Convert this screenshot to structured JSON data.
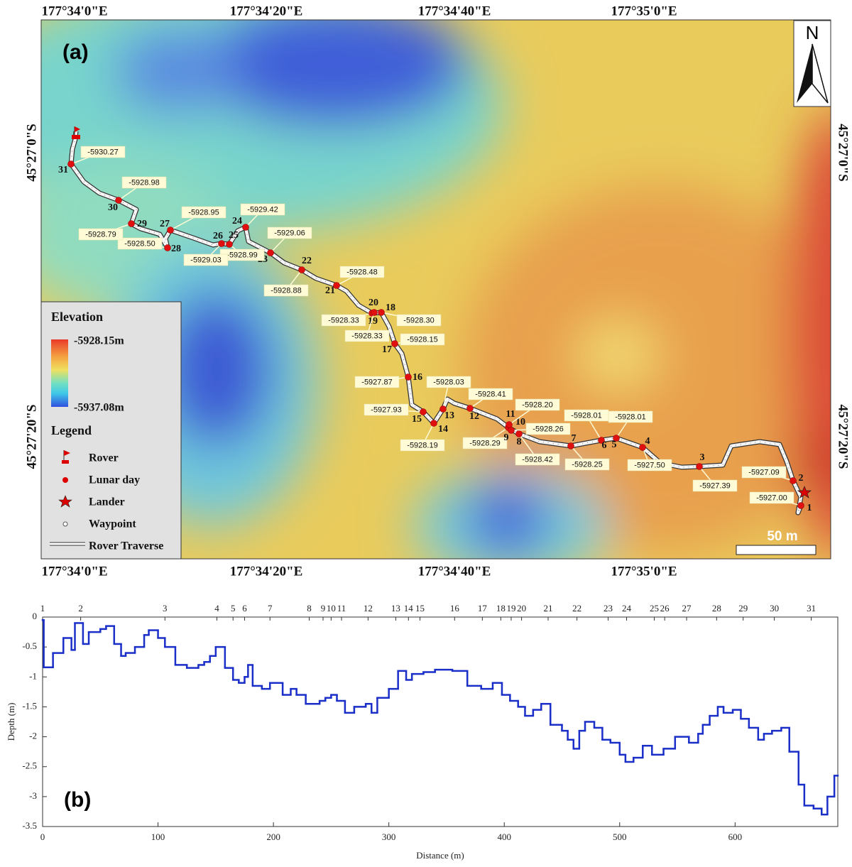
{
  "map": {
    "panel_label": "(a)",
    "top_labels": [
      "177°34'0\"E",
      "177°34'20\"E",
      "177°34'40\"E",
      "177°35'0\"E"
    ],
    "bottom_labels": [
      "177°34'0\"E",
      "177°34'20\"E",
      "177°34'40\"E",
      "177°35'0\"E"
    ],
    "left_labels": [
      "45°27'0\"S",
      "45°27'20\"S"
    ],
    "right_labels": [
      "45°27'0\"S",
      "45°27'20\"S"
    ],
    "north": "N",
    "scale_bar": "50 m",
    "legend": {
      "elevation_title": "Elevation",
      "elevation_max": "-5928.15m",
      "elevation_min": "-5937.08m",
      "title": "Legend",
      "items": [
        "Rover",
        "Lunar day",
        "Lander",
        "Waypoint",
        "Rover Traverse"
      ]
    },
    "waypoints": [
      {
        "label": "1",
        "elevation": "-5927.00"
      },
      {
        "label": "2",
        "elevation": "-5927.09"
      },
      {
        "label": "3",
        "elevation": "-5927.39"
      },
      {
        "label": "4",
        "elevation": "-5927.50"
      },
      {
        "label": "5",
        "elevation": "-5928.01"
      },
      {
        "label": "6",
        "elevation": "-5928.01"
      },
      {
        "label": "7",
        "elevation": "-5928.25"
      },
      {
        "label": "8",
        "elevation": "-5928.42"
      },
      {
        "label": "9",
        "elevation": "-5928.29"
      },
      {
        "label": "10",
        "elevation": "-5928.26"
      },
      {
        "label": "11",
        "elevation": "-5928.20"
      },
      {
        "label": "12",
        "elevation": "-5928.41"
      },
      {
        "label": "13",
        "elevation": "-5928.03"
      },
      {
        "label": "14",
        "elevation": "-5928.19"
      },
      {
        "label": "15",
        "elevation": "-5927.93"
      },
      {
        "label": "16",
        "elevation": "-5927.87"
      },
      {
        "label": "17",
        "elevation": "-5928.15"
      },
      {
        "label": "18",
        "elevation": "-5928.30"
      },
      {
        "label": "19",
        "elevation": "-5928.33"
      },
      {
        "label": "20",
        "elevation": "-5928.33"
      },
      {
        "label": "21",
        "elevation": "-5928.48"
      },
      {
        "label": "22",
        "elevation": "-5928.88"
      },
      {
        "label": "23",
        "elevation": "-5929.06"
      },
      {
        "label": "24",
        "elevation": "-5929.42"
      },
      {
        "label": "25",
        "elevation": "-5928.99"
      },
      {
        "label": "26",
        "elevation": "-5929.03"
      },
      {
        "label": "27",
        "elevation": "-5928.95"
      },
      {
        "label": "28",
        "elevation": "-5928.50"
      },
      {
        "label": "29",
        "elevation": "-5928.79"
      },
      {
        "label": "30",
        "elevation": "-5928.98"
      },
      {
        "label": "31",
        "elevation": "-5930.27"
      }
    ]
  },
  "chart_data": {
    "type": "line",
    "drawstyle": "steps-post",
    "panel_label": "(b)",
    "xlabel": "Distance (m)",
    "ylabel": "Depth (m)",
    "x": [
      0,
      1,
      9,
      18,
      25,
      28,
      35,
      40,
      50,
      55,
      62,
      68,
      72,
      80,
      88,
      92,
      100,
      106,
      115,
      125,
      135,
      140,
      145,
      150,
      158,
      165,
      170,
      175,
      178,
      182,
      190,
      197,
      208,
      215,
      220,
      228,
      240,
      245,
      250,
      255,
      262,
      270,
      280,
      285,
      290,
      300,
      308,
      315,
      320,
      330,
      340,
      355,
      368,
      380,
      390,
      398,
      405,
      412,
      418,
      425,
      432,
      440,
      450,
      455,
      460,
      465,
      470,
      478,
      485,
      492,
      500,
      505,
      512,
      520,
      528,
      538,
      548,
      560,
      568,
      572,
      578,
      585,
      590,
      598,
      605,
      612,
      620,
      625,
      632,
      640,
      647,
      655,
      660,
      668,
      675,
      680,
      686
    ],
    "series": [
      {
        "color": "#1a2ec8",
        "values": [
          -0.05,
          -0.84,
          -0.6,
          -0.35,
          -0.55,
          -0.1,
          -0.45,
          -0.25,
          -0.2,
          -0.15,
          -0.45,
          -0.65,
          -0.6,
          -0.5,
          -0.3,
          -0.22,
          -0.35,
          -0.5,
          -0.8,
          -0.85,
          -0.8,
          -0.75,
          -0.65,
          -0.5,
          -0.85,
          -1.05,
          -1.1,
          -1.0,
          -0.8,
          -1.15,
          -1.2,
          -1.1,
          -1.3,
          -1.2,
          -1.3,
          -1.45,
          -1.4,
          -1.35,
          -1.3,
          -1.4,
          -1.6,
          -1.5,
          -1.45,
          -1.6,
          -1.35,
          -1.2,
          -0.9,
          -1.05,
          -0.95,
          -0.92,
          -0.88,
          -0.9,
          -1.15,
          -1.2,
          -1.1,
          -1.3,
          -1.4,
          -1.5,
          -1.65,
          -1.55,
          -1.45,
          -1.8,
          -1.9,
          -2.05,
          -2.2,
          -1.9,
          -1.75,
          -1.85,
          -2.05,
          -2.1,
          -2.3,
          -2.42,
          -2.35,
          -2.15,
          -2.3,
          -2.2,
          -2.0,
          -2.1,
          -1.95,
          -1.8,
          -1.65,
          -1.5,
          -1.6,
          -1.55,
          -1.7,
          -1.85,
          -2.05,
          -1.95,
          -1.9,
          -1.85,
          -2.25,
          -2.8,
          -3.15,
          -3.2,
          -3.3,
          -3.0,
          -2.65
        ]
      }
    ],
    "xlim": [
      0,
      689
    ],
    "xticks": [
      0,
      100,
      200,
      300,
      400,
      500,
      600
    ],
    "ylim": [
      -3.5,
      0
    ],
    "yticks": [
      0,
      -0.5,
      -1,
      -1.5,
      -2,
      -2.5,
      -3,
      -3.5
    ],
    "top_ticks": [
      {
        "value": 0,
        "label": "1"
      },
      {
        "value": 33,
        "label": "2"
      },
      {
        "value": 106,
        "label": "3"
      },
      {
        "value": 151,
        "label": "4"
      },
      {
        "value": 165,
        "label": "5"
      },
      {
        "value": 175,
        "label": "6"
      },
      {
        "value": 197,
        "label": "7"
      },
      {
        "value": 231,
        "label": "8"
      },
      {
        "value": 243,
        "label": "9"
      },
      {
        "value": 250,
        "label": "10"
      },
      {
        "value": 259,
        "label": "11"
      },
      {
        "value": 282,
        "label": "12"
      },
      {
        "value": 306,
        "label": "13"
      },
      {
        "value": 317,
        "label": "14"
      },
      {
        "value": 327,
        "label": "15"
      },
      {
        "value": 357,
        "label": "16"
      },
      {
        "value": 381,
        "label": "17"
      },
      {
        "value": 397,
        "label": "18"
      },
      {
        "value": 406,
        "label": "19"
      },
      {
        "value": 415,
        "label": "20"
      },
      {
        "value": 438,
        "label": "21"
      },
      {
        "value": 463,
        "label": "22"
      },
      {
        "value": 490,
        "label": "23"
      },
      {
        "value": 506,
        "label": "24"
      },
      {
        "value": 530,
        "label": "25"
      },
      {
        "value": 539,
        "label": "26"
      },
      {
        "value": 558,
        "label": "27"
      },
      {
        "value": 584,
        "label": "28"
      },
      {
        "value": 607,
        "label": "29"
      },
      {
        "value": 634,
        "label": "30"
      },
      {
        "value": 666,
        "label": "31"
      }
    ]
  }
}
